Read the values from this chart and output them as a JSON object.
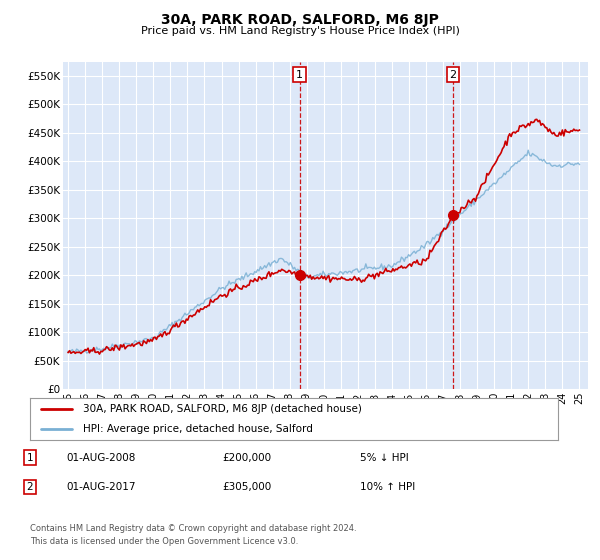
{
  "title": "30A, PARK ROAD, SALFORD, M6 8JP",
  "subtitle": "Price paid vs. HM Land Registry's House Price Index (HPI)",
  "ylim": [
    0,
    575000
  ],
  "xlim_start": 1994.7,
  "xlim_end": 2025.5,
  "yticks": [
    0,
    50000,
    100000,
    150000,
    200000,
    250000,
    300000,
    350000,
    400000,
    450000,
    500000,
    550000
  ],
  "ytick_labels": [
    "£0",
    "£50K",
    "£100K",
    "£150K",
    "£200K",
    "£250K",
    "£300K",
    "£350K",
    "£400K",
    "£450K",
    "£500K",
    "£550K"
  ],
  "plot_bg_color": "#dde8f8",
  "grid_color": "#ffffff",
  "red_line_color": "#cc0000",
  "blue_line_color": "#7ab0d4",
  "marker1_x": 2008.58,
  "marker1_y": 200000,
  "marker2_x": 2017.58,
  "marker2_y": 305000,
  "vline1_x": 2008.58,
  "vline2_x": 2017.58,
  "legend_label_red": "30A, PARK ROAD, SALFORD, M6 8JP (detached house)",
  "legend_label_blue": "HPI: Average price, detached house, Salford",
  "note1_date": "01-AUG-2008",
  "note1_price": "£200,000",
  "note1_hpi": "5% ↓ HPI",
  "note2_date": "01-AUG-2017",
  "note2_price": "£305,000",
  "note2_hpi": "10% ↑ HPI",
  "footer": "Contains HM Land Registry data © Crown copyright and database right 2024.\nThis data is licensed under the Open Government Licence v3.0."
}
